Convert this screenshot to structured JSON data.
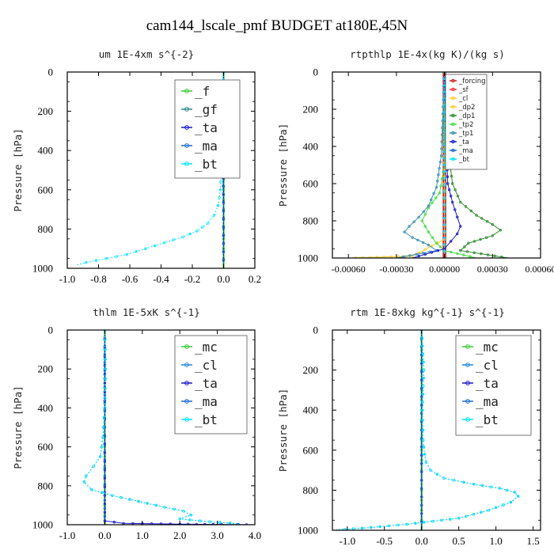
{
  "title": "cam144_lscale_pmf  BUDGET at180E,45N",
  "colors": {
    "f": "#33cc33",
    "gf": "#2a8a8a",
    "ta": "#1a1acc",
    "ma": "#1a6ad0",
    "bt": "#00e5ff",
    "mc": "#33cc33",
    "cl": "#1a8ae0",
    "forcing": "#cc2222",
    "sf": "#ff3333",
    "dp2": "#ffcc33",
    "dp1": "#2e8b2e",
    "tp2": "#44dd44",
    "tp1": "#3a8fb0"
  },
  "chart_data": [
    {
      "type": "line",
      "title": "um  1E-4xm s^{-2}",
      "ylabel": "Pressure [hPa]",
      "xlim": [
        -1.0,
        0.2
      ],
      "ylim": [
        1000,
        0
      ],
      "xticks": [
        "-1.0",
        "-0.8",
        "-0.6",
        "-0.4",
        "-0.2",
        "0.0",
        "0.2"
      ],
      "yticks": [
        "0",
        "200",
        "400",
        "600",
        "800",
        "1000"
      ],
      "legend": {
        "position": "top-right",
        "style": "big"
      },
      "series": [
        {
          "name": "_f",
          "key": "f",
          "x": [
            0,
            0,
            0,
            0,
            0,
            0,
            0,
            0,
            0,
            0,
            0
          ],
          "y": [
            0,
            100,
            200,
            300,
            400,
            500,
            600,
            700,
            800,
            900,
            1000
          ]
        },
        {
          "name": "_gf",
          "key": "gf",
          "x": [
            0,
            -0.005,
            -0.01,
            -0.01,
            -0.005,
            0,
            0
          ],
          "y": [
            0,
            150,
            250,
            350,
            500,
            700,
            1000
          ]
        },
        {
          "name": "_ta",
          "key": "ta",
          "x": [
            0,
            0,
            0,
            0,
            0
          ],
          "y": [
            0,
            250,
            500,
            750,
            1000
          ]
        },
        {
          "name": "_ma",
          "key": "ma",
          "x": [
            0,
            0,
            0,
            0,
            0
          ],
          "y": [
            0,
            250,
            500,
            750,
            1000
          ]
        },
        {
          "name": "_bt",
          "key": "bt",
          "x": [
            0,
            -0.005,
            -0.01,
            -0.02,
            -0.035,
            -0.06,
            -0.1,
            -0.17,
            -0.26,
            -0.38,
            -0.5,
            -0.62,
            -0.75,
            -0.88,
            -0.95
          ],
          "y": [
            0,
            200,
            400,
            600,
            680,
            730,
            770,
            810,
            840,
            870,
            900,
            930,
            950,
            970,
            985
          ]
        }
      ]
    },
    {
      "type": "line",
      "title": "rtpthlp  1E-4x(kg K)/(kg s)",
      "ylabel": "Pressure [hPa]",
      "xlim": [
        -0.0007,
        0.0006
      ],
      "ylim": [
        1000,
        0
      ],
      "xticks": [
        "-0.00060",
        "-0.00030",
        "0.00000",
        "0.00030",
        "0.00060"
      ],
      "yticks": [
        "0",
        "200",
        "400",
        "600",
        "800",
        "1000"
      ],
      "legend": {
        "position": "top-right",
        "style": "small"
      },
      "series": [
        {
          "name": "_forcing",
          "key": "forcing",
          "x": [
            0,
            0,
            0,
            0,
            0
          ],
          "y": [
            0,
            250,
            500,
            750,
            1000
          ]
        },
        {
          "name": "_sf",
          "key": "sf",
          "x": [
            0,
            0,
            0,
            0,
            0
          ],
          "y": [
            0,
            250,
            500,
            750,
            1000
          ]
        },
        {
          "name": "_cl",
          "key": "dp2",
          "x": [
            0,
            0,
            0,
            -0.0002,
            -0.0006
          ],
          "y": [
            0,
            600,
            900,
            990,
            1000
          ]
        },
        {
          "name": "_dp2",
          "key": "dp2",
          "x": [
            0,
            0,
            0,
            0,
            0
          ],
          "y": [
            0,
            250,
            500,
            750,
            1000
          ]
        },
        {
          "name": "_dp1",
          "key": "dp1",
          "x": [
            0,
            2e-05,
            5e-05,
            0.0001,
            0.0002,
            0.0003,
            0.00035,
            0.0003,
            0.00015,
            0.0001,
            0.0004
          ],
          "y": [
            0,
            400,
            600,
            700,
            770,
            820,
            850,
            880,
            920,
            960,
            1000
          ]
        },
        {
          "name": "_tp2",
          "key": "tp2",
          "x": [
            0,
            0,
            -3e-05,
            -0.0001,
            -0.00014,
            -0.0001,
            -5e-05,
            0,
            0.0002
          ],
          "y": [
            0,
            500,
            650,
            730,
            800,
            860,
            920,
            960,
            1000
          ]
        },
        {
          "name": "_tp1",
          "key": "tp1",
          "x": [
            0,
            -2e-05,
            -5e-05,
            -0.0001,
            -0.00016,
            -0.00022,
            -0.00025,
            -0.0002,
            -0.0001,
            -5e-05,
            -0.0003
          ],
          "y": [
            0,
            450,
            620,
            720,
            780,
            830,
            860,
            890,
            930,
            960,
            1000
          ]
        },
        {
          "name": "_ta",
          "key": "ta",
          "x": [
            0,
            2e-05,
            5e-05,
            8e-05,
            0.0001,
            8e-05,
            4e-05,
            0,
            -0.0002
          ],
          "y": [
            0,
            600,
            700,
            780,
            830,
            870,
            910,
            950,
            1000
          ]
        },
        {
          "name": "_ma",
          "key": "ma",
          "x": [
            0,
            0,
            0,
            0,
            0
          ],
          "y": [
            0,
            250,
            500,
            750,
            1000
          ]
        },
        {
          "name": "_bt",
          "key": "bt",
          "x": [
            0,
            0,
            0,
            0,
            0
          ],
          "y": [
            0,
            250,
            500,
            750,
            1000
          ]
        }
      ]
    },
    {
      "type": "line",
      "title": "thlm  1E-5xK s^{-1}",
      "ylabel": "Pressure [hPa]",
      "xlim": [
        -1.0,
        4.0
      ],
      "ylim": [
        1000,
        0
      ],
      "xticks": [
        "-1.0",
        "0.0",
        "1.0",
        "2.0",
        "3.0",
        "4.0"
      ],
      "yticks": [
        "0",
        "200",
        "400",
        "600",
        "800",
        "1000"
      ],
      "legend": {
        "position": "top-right",
        "style": "big"
      },
      "series": [
        {
          "name": "_mc",
          "key": "mc",
          "x": [
            0,
            0,
            0,
            0,
            0,
            0,
            0,
            0,
            0,
            0,
            0
          ],
          "y": [
            0,
            100,
            200,
            300,
            400,
            500,
            600,
            700,
            800,
            900,
            1000
          ]
        },
        {
          "name": "_cl",
          "key": "cl",
          "x": [
            0,
            0.02,
            0,
            -0.05,
            -0.12,
            -0.3,
            -0.5,
            -0.55,
            -0.35,
            0.2,
            0.9,
            1.6,
            2.1,
            2.3,
            2.0,
            2.8,
            3.6
          ],
          "y": [
            0,
            200,
            400,
            550,
            650,
            700,
            750,
            780,
            820,
            850,
            880,
            910,
            930,
            950,
            970,
            985,
            995
          ]
        },
        {
          "name": "_ta",
          "key": "ta",
          "x": [
            0,
            0,
            0,
            0.5,
            2.0,
            4.0
          ],
          "y": [
            0,
            500,
            980,
            993,
            997,
            1000
          ]
        },
        {
          "name": "_ma",
          "key": "ma",
          "x": [
            0,
            0,
            0,
            0,
            0
          ],
          "y": [
            0,
            250,
            500,
            750,
            1000
          ]
        },
        {
          "name": "_bt",
          "key": "bt",
          "x": [
            0,
            0.02,
            0,
            -0.05,
            -0.12,
            -0.3,
            -0.5,
            -0.55,
            -0.35,
            0.2,
            0.9,
            1.6,
            2.1,
            2.3,
            2.0,
            2.8,
            3.6
          ],
          "y": [
            0,
            200,
            400,
            550,
            650,
            700,
            750,
            780,
            820,
            850,
            880,
            910,
            930,
            950,
            970,
            985,
            995
          ]
        }
      ]
    },
    {
      "type": "line",
      "title": "rtm  1E-8xkg kg^{-1} s^{-1}",
      "ylabel": "Pressure [hPa]",
      "xlim": [
        -1.2,
        1.6
      ],
      "ylim": [
        1000,
        0
      ],
      "xticks": [
        "-1.0",
        "-0.5",
        "0.0",
        "0.5",
        "1.0",
        "1.5"
      ],
      "yticks": [
        "0",
        "200",
        "400",
        "600",
        "800",
        "1000"
      ],
      "legend": {
        "position": "top-right",
        "style": "big"
      },
      "series": [
        {
          "name": "_mc",
          "key": "mc",
          "x": [
            0,
            0,
            0,
            0,
            0,
            0,
            0,
            0,
            0,
            0,
            0
          ],
          "y": [
            0,
            100,
            200,
            300,
            400,
            500,
            600,
            700,
            800,
            900,
            1000
          ]
        },
        {
          "name": "_cl",
          "key": "cl",
          "x": [
            0,
            0.03,
            0.01,
            0.02,
            0.04,
            0.06,
            0.12,
            0.3,
            0.7,
            1.05,
            1.25,
            1.3,
            1.2,
            0.9,
            0.5,
            -0.2,
            -0.8,
            -1.15
          ],
          "y": [
            0,
            200,
            400,
            550,
            620,
            660,
            700,
            740,
            770,
            790,
            810,
            830,
            860,
            900,
            940,
            970,
            990,
            998
          ]
        },
        {
          "name": "_ta",
          "key": "ta",
          "x": [
            0,
            0,
            0,
            0,
            0
          ],
          "y": [
            0,
            250,
            500,
            750,
            1000
          ]
        },
        {
          "name": "_ma",
          "key": "ma",
          "x": [
            0,
            0,
            0,
            0,
            0
          ],
          "y": [
            0,
            250,
            500,
            750,
            1000
          ]
        },
        {
          "name": "_bt",
          "key": "bt",
          "x": [
            0,
            0.03,
            0.01,
            0.02,
            0.04,
            0.06,
            0.12,
            0.3,
            0.7,
            1.05,
            1.25,
            1.3,
            1.2,
            0.9,
            0.5,
            -0.2,
            -0.8,
            -1.15
          ],
          "y": [
            0,
            200,
            400,
            550,
            620,
            660,
            700,
            740,
            770,
            790,
            810,
            830,
            860,
            900,
            940,
            970,
            990,
            998
          ]
        }
      ]
    }
  ]
}
